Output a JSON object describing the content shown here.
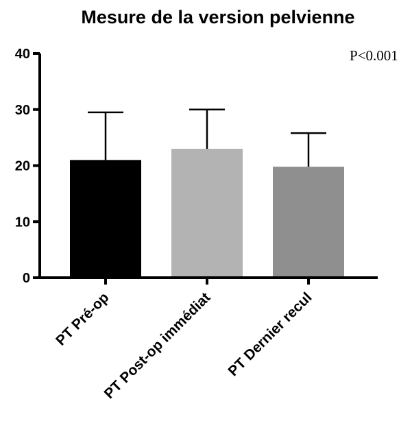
{
  "chart_data": {
    "type": "bar",
    "title": "Mesure de la version pelvienne",
    "xlabel": "",
    "ylabel": "",
    "categories": [
      "PT Pré-op",
      "PT Post-op immédiat",
      "PT Dernier recul"
    ],
    "values": [
      21,
      23,
      19.8
    ],
    "error_upper": [
      29.5,
      30,
      25.8
    ],
    "colors": [
      "#000000",
      "#b3b3b3",
      "#8f8f8f"
    ],
    "ylim": [
      0,
      40
    ],
    "yticks": [
      0,
      10,
      20,
      30,
      40
    ],
    "annotation": "P<0.001",
    "grid": false,
    "legend": "none"
  }
}
